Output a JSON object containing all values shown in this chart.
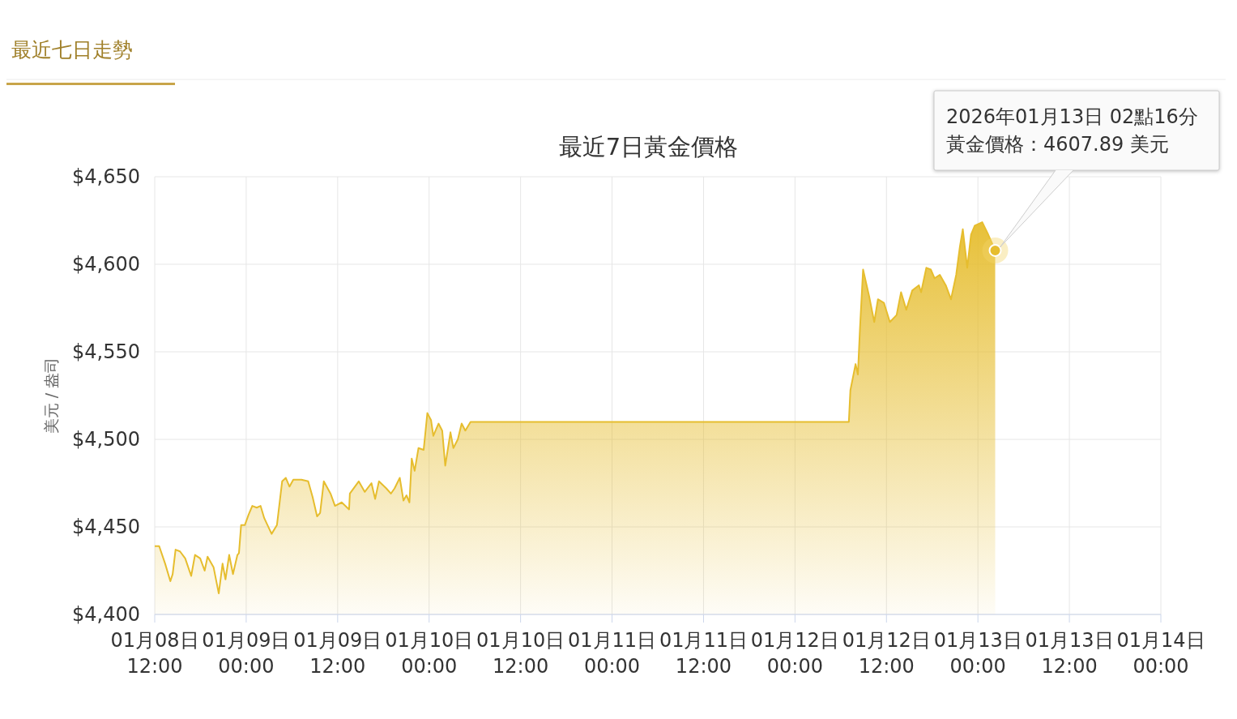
{
  "chart_data": {
    "type": "area",
    "title": "最近7日黃金價格",
    "ylabel": "美元 / 盎司",
    "annotations": [
      "最近七日走勢",
      "2026年01月13日 02點16分",
      "黃金價格：4607.89 美元"
    ],
    "xlim": [
      "2026-01-08T12:00",
      "2026-01-14T00:00"
    ],
    "xticks": [
      {
        "value": "2026-01-08T12:00",
        "label": "01月08日\n12:00"
      },
      {
        "value": "2026-01-09T00:00",
        "label": "01月09日\n00:00"
      },
      {
        "value": "2026-01-09T12:00",
        "label": "01月09日\n12:00"
      },
      {
        "value": "2026-01-10T00:00",
        "label": "01月10日\n00:00"
      },
      {
        "value": "2026-01-10T12:00",
        "label": "01月10日\n12:00"
      },
      {
        "value": "2026-01-11T00:00",
        "label": "01月11日\n00:00"
      },
      {
        "value": "2026-01-11T12:00",
        "label": "01月11日\n12:00"
      },
      {
        "value": "2026-01-12T00:00",
        "label": "01月12日\n00:00"
      },
      {
        "value": "2026-01-12T12:00",
        "label": "01月12日\n12:00"
      },
      {
        "value": "2026-01-13T00:00",
        "label": "01月13日\n00:00"
      },
      {
        "value": "2026-01-13T12:00",
        "label": "01月13日\n12:00"
      },
      {
        "value": "2026-01-14T00:00",
        "label": "01月14日\n00:00"
      }
    ],
    "ylim": [
      4400,
      4650
    ],
    "yticks": [
      {
        "value": 4400,
        "label": "$4,400"
      },
      {
        "value": 4450,
        "label": "$4,450"
      },
      {
        "value": 4500,
        "label": "$4,500"
      },
      {
        "value": 4550,
        "label": "$4,550"
      },
      {
        "value": 4600,
        "label": "$4,600"
      },
      {
        "value": 4650,
        "label": "$4,650"
      }
    ],
    "grid": true,
    "marker": "none",
    "line_style": "solid",
    "series": [
      {
        "color": "#e6bd2e",
        "x": [
          "2026-01-08T12:00",
          "2026-01-08T12:35",
          "2026-01-08T13:22",
          "2026-01-08T14:03",
          "2026-01-08T14:21",
          "2026-01-08T14:44",
          "2026-01-08T15:19",
          "2026-01-08T16:00",
          "2026-01-08T16:47",
          "2026-01-08T17:17",
          "2026-01-08T17:58",
          "2026-01-08T18:33",
          "2026-01-08T18:56",
          "2026-01-08T19:43",
          "2026-01-08T20:24",
          "2026-01-08T20:54",
          "2026-01-08T21:17",
          "2026-01-08T21:46",
          "2026-01-08T22:16",
          "2026-01-08T22:51",
          "2026-01-08T23:03",
          "2026-01-08T23:20",
          "2026-01-08T23:49",
          "2026-01-09T00:19",
          "2026-01-09T00:48",
          "2026-01-09T01:23",
          "2026-01-09T01:53",
          "2026-01-09T02:22",
          "2026-01-09T03:20",
          "2026-01-09T04:02",
          "2026-01-09T04:43",
          "2026-01-09T05:12",
          "2026-01-09T05:41",
          "2026-01-09T06:11",
          "2026-01-09T07:15",
          "2026-01-09T08:08",
          "2026-01-09T08:43",
          "2026-01-09T09:18",
          "2026-01-09T09:42",
          "2026-01-09T10:11",
          "2026-01-09T11:04",
          "2026-01-09T11:39",
          "2026-01-09T12:32",
          "2026-01-09T13:30",
          "2026-01-09T13:36",
          "2026-01-09T14:46",
          "2026-01-09T15:33",
          "2026-01-09T16:26",
          "2026-01-09T16:55",
          "2026-01-09T17:25",
          "2026-01-09T18:23",
          "2026-01-09T18:59",
          "2026-01-09T19:28",
          "2026-01-09T20:09",
          "2026-01-09T20:38",
          "2026-01-09T21:02",
          "2026-01-09T21:25",
          "2026-01-09T21:43",
          "2026-01-09T22:06",
          "2026-01-09T22:36",
          "2026-01-09T23:17",
          "2026-01-09T23:46",
          "2026-01-10T00:15",
          "2026-01-10T00:33",
          "2026-01-10T01:14",
          "2026-01-10T01:43",
          "2026-01-10T02:07",
          "2026-01-10T02:48",
          "2026-01-10T03:11",
          "2026-01-10T03:46",
          "2026-01-10T04:16",
          "2026-01-10T04:45",
          "2026-01-10T05:26",
          "2026-01-10T05:55",
          "2026-01-12T07:04",
          "2026-01-12T07:16",
          "2026-01-12T07:57",
          "2026-01-12T08:15",
          "2026-01-12T08:32",
          "2026-01-12T08:56",
          "2026-01-12T09:43",
          "2026-01-12T10:24",
          "2026-01-12T10:53",
          "2026-01-12T11:40",
          "2026-01-12T12:27",
          "2026-01-12T13:20",
          "2026-01-12T13:55",
          "2026-01-12T14:36",
          "2026-01-12T15:23",
          "2026-01-12T16:15",
          "2026-01-12T16:33",
          "2026-01-12T17:14",
          "2026-01-12T17:49",
          "2026-01-12T18:19",
          "2026-01-12T19:00",
          "2026-01-12T19:47",
          "2026-01-12T20:28",
          "2026-01-12T21:09",
          "2026-01-12T21:38",
          "2026-01-12T22:01",
          "2026-01-12T22:36",
          "2026-01-12T23:06",
          "2026-01-12T23:35",
          "2026-01-13T00:34",
          "2026-01-13T01:21",
          "2026-01-13T02:16"
        ],
        "values": [
          4439,
          4439,
          4429,
          4419,
          4423,
          4437,
          4436,
          4432,
          4422,
          4434,
          4432,
          4425,
          4433,
          4427,
          4412,
          4429,
          4420,
          4434,
          4423,
          4434,
          4435,
          4451,
          4451,
          4457,
          4462,
          4461,
          4462,
          4455,
          4446,
          4451,
          4476,
          4478,
          4473,
          4477,
          4477,
          4476,
          4467,
          4456,
          4458,
          4476,
          4469,
          4462,
          4464,
          4460,
          4469,
          4476,
          4470,
          4475,
          4466,
          4476,
          4472,
          4469,
          4472,
          4478,
          4465,
          4468,
          4464,
          4489,
          4482,
          4495,
          4494,
          4515,
          4511,
          4502,
          4509,
          4505,
          4485,
          4504,
          4495,
          4500,
          4509,
          4505,
          4510,
          4510,
          4510,
          4528,
          4543,
          4537,
          4564,
          4597,
          4582,
          4567,
          4580,
          4578,
          4567,
          4571,
          4584,
          4574,
          4585,
          4588,
          4584,
          4598,
          4597,
          4592,
          4594,
          4588,
          4580,
          4594,
          4610,
          4620,
          4598,
          4617,
          4622,
          4624,
          4617,
          4607.89
        ]
      }
    ]
  }
}
